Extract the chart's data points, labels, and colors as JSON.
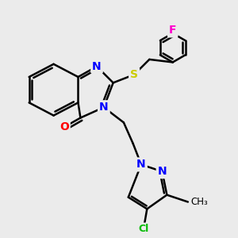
{
  "bg_color": "#ebebeb",
  "bond_color": "#000000",
  "bond_width": 1.8,
  "atom_colors": {
    "N": "#0000ff",
    "O": "#ff0000",
    "S": "#cccc00",
    "Cl": "#00bb00",
    "F": "#ff00cc",
    "C": "#000000"
  },
  "font_size": 10,
  "fig_size": [
    3.0,
    3.0
  ],
  "dpi": 100
}
